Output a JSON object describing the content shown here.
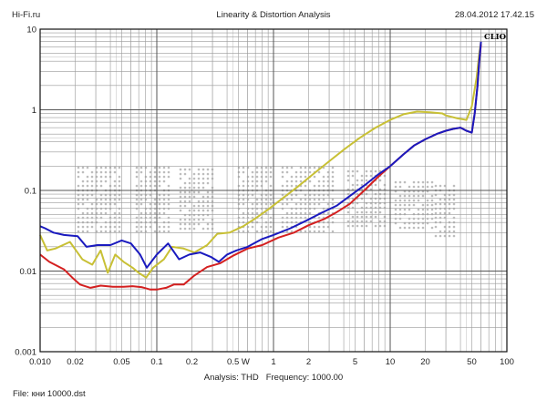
{
  "header": {
    "left": "Hi-Fi.ru",
    "title": "Linearity & Distortion Analysis",
    "datetime": "28.04.2012 17.42.15"
  },
  "footer": {
    "analysis_label": "Analysis: THD",
    "frequency_label": "Frequency: 1000.00",
    "file_label": "File: кни 10000.dst"
  },
  "badge": "CLIO",
  "chart_data": {
    "type": "line",
    "title": "Linearity & Distortion Analysis",
    "x_scale": "log",
    "y_scale": "log",
    "xlim": [
      0.01,
      100
    ],
    "ylim": [
      0.001,
      10
    ],
    "grid": true,
    "x_tick_labels": [
      {
        "v": 0.01,
        "t": "0.010"
      },
      {
        "v": 0.02,
        "t": "0.02"
      },
      {
        "v": 0.05,
        "t": "0.05"
      },
      {
        "v": 0.1,
        "t": "0.1"
      },
      {
        "v": 0.2,
        "t": "0.2"
      },
      {
        "v": 0.5,
        "t": "0.5 W"
      },
      {
        "v": 1,
        "t": "1"
      },
      {
        "v": 2,
        "t": "2"
      },
      {
        "v": 5,
        "t": "5"
      },
      {
        "v": 10,
        "t": "10"
      },
      {
        "v": 20,
        "t": "20"
      },
      {
        "v": 50,
        "t": "50"
      },
      {
        "v": 100,
        "t": "100"
      }
    ],
    "y_tick_labels": [
      {
        "v": 10,
        "t": "10"
      },
      {
        "v": 1,
        "t": "1"
      },
      {
        "v": 0.1,
        "t": "0.1"
      },
      {
        "v": 0.01,
        "t": "0.01"
      },
      {
        "v": 0.001,
        "t": "0.001"
      }
    ],
    "series": [
      {
        "color": "#c8c035",
        "points": [
          [
            0.01,
            0.028
          ],
          [
            0.0115,
            0.018
          ],
          [
            0.0135,
            0.019
          ],
          [
            0.018,
            0.023
          ],
          [
            0.023,
            0.014
          ],
          [
            0.028,
            0.012
          ],
          [
            0.033,
            0.018
          ],
          [
            0.038,
            0.0095
          ],
          [
            0.044,
            0.016
          ],
          [
            0.052,
            0.013
          ],
          [
            0.062,
            0.011
          ],
          [
            0.07,
            0.0095
          ],
          [
            0.081,
            0.0083
          ],
          [
            0.093,
            0.011
          ],
          [
            0.115,
            0.014
          ],
          [
            0.135,
            0.02
          ],
          [
            0.17,
            0.019
          ],
          [
            0.21,
            0.017
          ],
          [
            0.27,
            0.021
          ],
          [
            0.33,
            0.029
          ],
          [
            0.42,
            0.03
          ],
          [
            0.55,
            0.036
          ],
          [
            0.7,
            0.045
          ],
          [
            0.9,
            0.058
          ],
          [
            1.2,
            0.08
          ],
          [
            1.6,
            0.11
          ],
          [
            2.2,
            0.16
          ],
          [
            3,
            0.23
          ],
          [
            4,
            0.32
          ],
          [
            5.5,
            0.45
          ],
          [
            7.5,
            0.6
          ],
          [
            10,
            0.75
          ],
          [
            13,
            0.88
          ],
          [
            17,
            0.95
          ],
          [
            22,
            0.93
          ],
          [
            28,
            0.9
          ],
          [
            30,
            0.85
          ],
          [
            38,
            0.78
          ],
          [
            45,
            0.75
          ],
          [
            50,
            1.1
          ],
          [
            55,
            2.5
          ],
          [
            58,
            5
          ],
          [
            60,
            7
          ]
        ]
      },
      {
        "color": "#d42020",
        "points": [
          [
            0.01,
            0.016
          ],
          [
            0.012,
            0.013
          ],
          [
            0.016,
            0.0105
          ],
          [
            0.019,
            0.0082
          ],
          [
            0.022,
            0.0068
          ],
          [
            0.027,
            0.0062
          ],
          [
            0.033,
            0.0066
          ],
          [
            0.042,
            0.0064
          ],
          [
            0.052,
            0.0064
          ],
          [
            0.062,
            0.0065
          ],
          [
            0.075,
            0.0063
          ],
          [
            0.088,
            0.0059
          ],
          [
            0.1,
            0.0059
          ],
          [
            0.12,
            0.0062
          ],
          [
            0.14,
            0.0068
          ],
          [
            0.17,
            0.0068
          ],
          [
            0.21,
            0.0088
          ],
          [
            0.27,
            0.0112
          ],
          [
            0.35,
            0.0125
          ],
          [
            0.45,
            0.0155
          ],
          [
            0.6,
            0.019
          ],
          [
            0.8,
            0.021
          ],
          [
            1.1,
            0.026
          ],
          [
            1.5,
            0.03
          ],
          [
            2,
            0.037
          ],
          [
            2.7,
            0.044
          ],
          [
            3.5,
            0.054
          ],
          [
            4.5,
            0.068
          ],
          [
            6,
            0.1
          ],
          [
            8,
            0.15
          ],
          [
            10,
            0.2
          ],
          [
            13,
            0.28
          ],
          [
            16,
            0.36
          ],
          [
            20,
            0.43
          ],
          [
            25,
            0.5
          ],
          [
            30,
            0.55
          ],
          [
            35,
            0.58
          ],
          [
            40,
            0.6
          ],
          [
            45,
            0.55
          ],
          [
            50,
            0.52
          ],
          [
            53,
            0.9
          ],
          [
            56,
            2
          ],
          [
            58,
            4
          ],
          [
            60,
            6.5
          ]
        ]
      },
      {
        "color": "#1a1abf",
        "points": [
          [
            0.01,
            0.036
          ],
          [
            0.011,
            0.034
          ],
          [
            0.013,
            0.03
          ],
          [
            0.016,
            0.028
          ],
          [
            0.021,
            0.027
          ],
          [
            0.025,
            0.02
          ],
          [
            0.031,
            0.021
          ],
          [
            0.04,
            0.021
          ],
          [
            0.05,
            0.024
          ],
          [
            0.06,
            0.022
          ],
          [
            0.072,
            0.016
          ],
          [
            0.082,
            0.011
          ],
          [
            0.1,
            0.016
          ],
          [
            0.125,
            0.022
          ],
          [
            0.155,
            0.014
          ],
          [
            0.19,
            0.016
          ],
          [
            0.235,
            0.017
          ],
          [
            0.29,
            0.015
          ],
          [
            0.34,
            0.013
          ],
          [
            0.4,
            0.016
          ],
          [
            0.48,
            0.018
          ],
          [
            0.6,
            0.02
          ],
          [
            0.8,
            0.025
          ],
          [
            1,
            0.028
          ],
          [
            1.4,
            0.034
          ],
          [
            1.9,
            0.042
          ],
          [
            2.6,
            0.053
          ],
          [
            3.5,
            0.065
          ],
          [
            4.5,
            0.085
          ],
          [
            6,
            0.115
          ],
          [
            8,
            0.16
          ],
          [
            10,
            0.2
          ],
          [
            13,
            0.28
          ],
          [
            16,
            0.36
          ],
          [
            20,
            0.43
          ],
          [
            25,
            0.5
          ],
          [
            30,
            0.55
          ],
          [
            35,
            0.58
          ],
          [
            40,
            0.6
          ],
          [
            45,
            0.55
          ],
          [
            50,
            0.52
          ],
          [
            53,
            0.9
          ],
          [
            56,
            2
          ],
          [
            58,
            4
          ],
          [
            60,
            7
          ]
        ]
      }
    ]
  }
}
